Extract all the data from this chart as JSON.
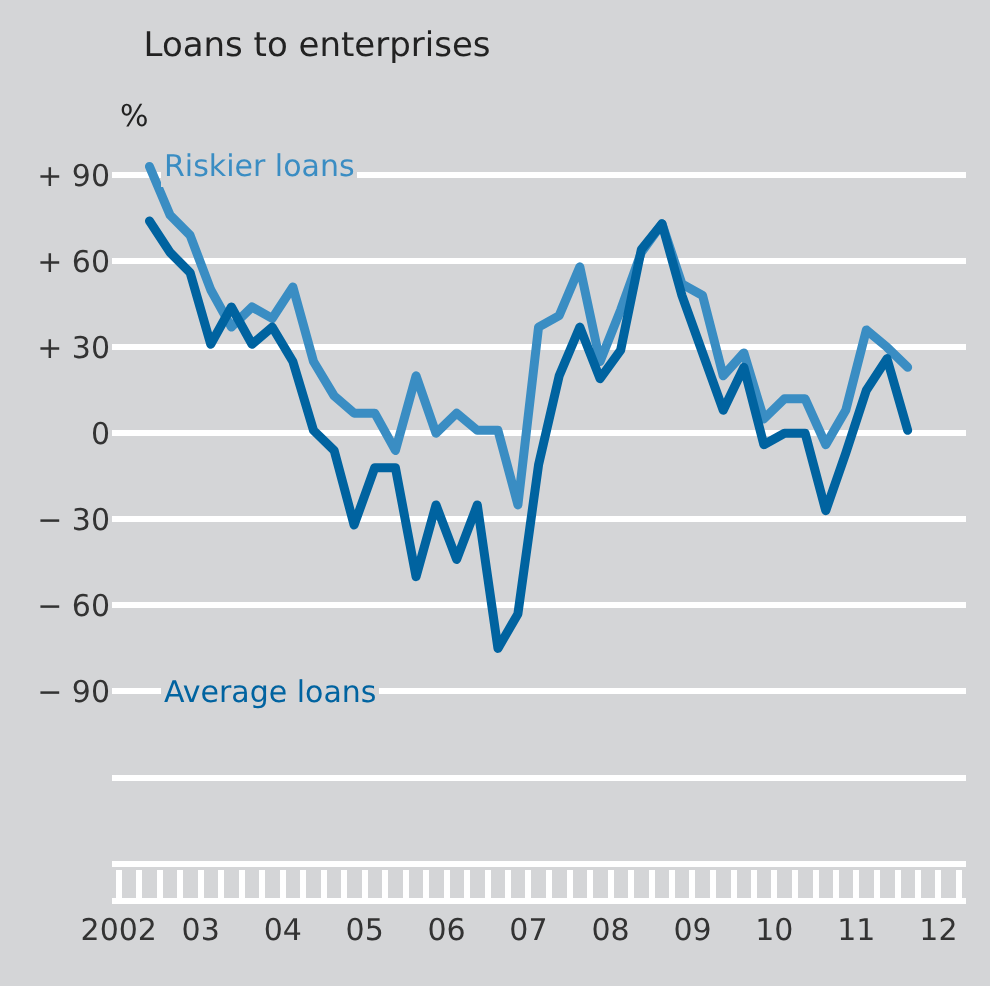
{
  "chart_data": {
    "type": "line",
    "title": "Loans to enterprises",
    "ylabel": "%",
    "x": [
      "2002-11-15",
      "2003-02-15",
      "2003-05-15",
      "2003-08-15",
      "2003-11-15",
      "2004-02-15",
      "2004-05-15",
      "2004-08-15",
      "2004-11-15",
      "2005-02-15",
      "2005-05-15",
      "2005-08-15",
      "2005-11-15",
      "2006-02-15",
      "2006-05-15",
      "2006-08-15",
      "2006-11-15",
      "2007-02-15",
      "2007-05-15",
      "2007-08-15",
      "2007-11-15",
      "2008-02-15",
      "2008-05-15",
      "2008-08-15",
      "2008-11-15",
      "2009-02-15",
      "2009-05-15",
      "2009-08-15",
      "2009-11-15",
      "2010-02-15",
      "2010-05-15",
      "2010-08-15",
      "2010-11-15",
      "2011-02-15",
      "2011-05-15",
      "2011-08-15",
      "2011-11-15",
      "2012-02-15"
    ],
    "series": [
      {
        "name": "Riskier loans",
        "color": "#3a8dc3",
        "values": [
          93,
          76,
          69,
          50,
          37,
          44,
          40,
          51,
          25,
          13,
          7,
          7,
          -6,
          20,
          0,
          7,
          1,
          1,
          -25,
          37,
          41,
          58,
          25,
          43,
          63,
          73,
          52,
          48,
          20,
          28,
          5,
          12,
          12,
          -4,
          8,
          36,
          30,
          23
        ]
      },
      {
        "name": "Average loans",
        "color": "#0063a0",
        "values": [
          74,
          63,
          56,
          31,
          44,
          31,
          37,
          25,
          1,
          -6,
          -32,
          -12,
          -12,
          -50,
          -25,
          -44,
          -25,
          -75,
          -63,
          -11,
          20,
          37,
          19,
          29,
          64,
          73,
          48,
          28,
          8,
          23,
          -4,
          0,
          0,
          -27,
          -7,
          15,
          26,
          1
        ]
      }
    ],
    "xlim": [
      "2002-06-01",
      "2012-11-01"
    ],
    "xticks": [
      {
        "value": "2002-07-01",
        "label": "2002"
      },
      {
        "value": "2003-07-01",
        "label": "03"
      },
      {
        "value": "2004-07-01",
        "label": "04"
      },
      {
        "value": "2005-07-01",
        "label": "05"
      },
      {
        "value": "2006-07-01",
        "label": "06"
      },
      {
        "value": "2007-07-01",
        "label": "07"
      },
      {
        "value": "2008-07-01",
        "label": "08"
      },
      {
        "value": "2009-07-01",
        "label": "09"
      },
      {
        "value": "2010-07-01",
        "label": "10"
      },
      {
        "value": "2011-07-01",
        "label": "11"
      },
      {
        "value": "2012-07-01",
        "label": "12"
      }
    ],
    "ylim": [
      -162,
      151
    ],
    "yticks": [
      {
        "value": 90,
        "label": "+ 90"
      },
      {
        "value": 60,
        "label": "+ 60"
      },
      {
        "value": 30,
        "label": "+ 30"
      },
      0,
      {
        "value": -30,
        "label": "− 30"
      },
      {
        "value": -60,
        "label": "− 60"
      },
      {
        "value": -90,
        "label": "− 90"
      },
      {
        "value": -120,
        "label": null
      },
      {
        "value": -150,
        "label": null
      }
    ],
    "grid": "y",
    "legend": false,
    "marker": "none",
    "line_style": "solid"
  }
}
